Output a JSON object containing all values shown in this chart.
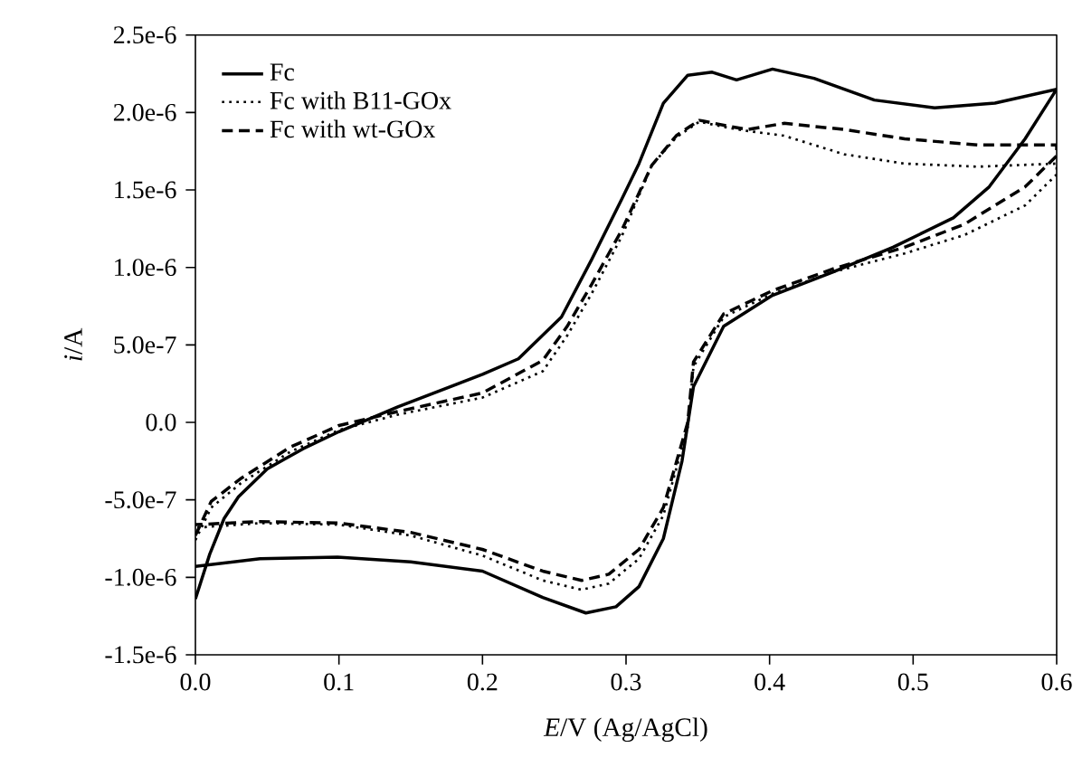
{
  "chart_data": {
    "type": "line",
    "xlabel": "*E*/V (Ag/AgCl)",
    "ylabel": "*i*/A",
    "xlim": [
      0,
      0.6
    ],
    "ylim": [
      -1.5e-06,
      2.5e-06
    ],
    "xticks": [
      {
        "value": 0,
        "label": "0.0"
      },
      0.1,
      0.2,
      0.3,
      0.4,
      0.5,
      0.6
    ],
    "yticks": [
      {
        "value": -1.5e-06,
        "label": "-1.5e-6"
      },
      {
        "value": -1e-06,
        "label": "-1.0e-6"
      },
      {
        "value": -5e-07,
        "label": "-5.0e-7"
      },
      {
        "value": 0,
        "label": "0.0"
      },
      {
        "value": 5e-07,
        "label": "5.0e-7"
      },
      {
        "value": 1e-06,
        "label": "1.0e-6"
      },
      {
        "value": 1.5e-06,
        "label": "1.5e-6"
      },
      {
        "value": 2e-06,
        "label": "2.0e-6"
      },
      {
        "value": 2.5e-06,
        "label": "2.5e-6"
      }
    ],
    "legend": "top left",
    "marker": "none",
    "series": [
      {
        "name": "Fc",
        "color": "#000000",
        "line_style": "solid",
        "x": [
          0,
          0.01,
          0.02,
          0.03,
          0.05,
          0.075,
          0.1,
          0.141,
          0.2,
          0.225,
          0.255,
          0.276,
          0.297,
          0.309,
          0.326,
          0.343,
          0.36,
          0.377,
          0.402,
          0.431,
          0.473,
          0.515,
          0.557,
          0.6,
          0.578,
          0.553,
          0.528,
          0.486,
          0.444,
          0.402,
          0.368,
          0.347,
          0.339,
          0.326,
          0.309,
          0.293,
          0.272,
          0.242,
          0.2,
          0.15,
          0.099,
          0.045,
          0
        ],
        "values": [
          -1.14e-06,
          -8.5e-07,
          -6.2e-07,
          -4.8e-07,
          -3e-07,
          -1.7e-07,
          -6e-08,
          1e-07,
          3.1e-07,
          4.1e-07,
          6.8e-07,
          1.05e-06,
          1.44e-06,
          1.67e-06,
          2.06e-06,
          2.24e-06,
          2.26e-06,
          2.21e-06,
          2.28e-06,
          2.22e-06,
          2.08e-06,
          2.03e-06,
          2.06e-06,
          2.15e-06,
          1.83e-06,
          1.52e-06,
          1.32e-06,
          1.13e-06,
          9.7e-07,
          8.2e-07,
          6.2e-07,
          2.3e-07,
          -2.5e-07,
          -7.5e-07,
          -1.06e-06,
          -1.19e-06,
          -1.23e-06,
          -1.13e-06,
          -9.6e-07,
          -9e-07,
          -8.7e-07,
          -8.8e-07,
          -9.3e-07
        ]
      },
      {
        "name": "Fc with B11-GOx",
        "color": "#000000",
        "line_style": "dotted",
        "x": [
          0,
          0.011,
          0.032,
          0.066,
          0.1,
          0.141,
          0.2,
          0.242,
          0.259,
          0.276,
          0.297,
          0.318,
          0.335,
          0.351,
          0.372,
          0.385,
          0.41,
          0.452,
          0.494,
          0.545,
          0.6,
          0.6,
          0.578,
          0.536,
          0.494,
          0.444,
          0.402,
          0.368,
          0.347,
          0.343,
          0.326,
          0.309,
          0.288,
          0.269,
          0.242,
          0.2,
          0.15,
          0.1,
          0.045,
          0
        ],
        "values": [
          -7.6e-07,
          -5.5e-07,
          -3.9e-07,
          -1.9e-07,
          -5e-08,
          5e-08,
          1.6e-07,
          3.3e-07,
          5.6e-07,
          8.3e-07,
          1.2e-06,
          1.66e-06,
          1.84e-06,
          1.94e-06,
          1.9e-06,
          1.88e-06,
          1.85e-06,
          1.73e-06,
          1.67e-06,
          1.65e-06,
          1.67e-06,
          1.6e-06,
          1.4e-06,
          1.21e-06,
          1.09e-06,
          9.7e-07,
          8.3e-07,
          6.8e-07,
          3.6e-07,
          -3e-08,
          -6e-07,
          -8.8e-07,
          -1.04e-06,
          -1.08e-06,
          -1.02e-06,
          -8.6e-07,
          -7.3e-07,
          -6.6e-07,
          -6.5e-07,
          -6.8e-07
        ]
      },
      {
        "name": "Fc with wt-GOx",
        "color": "#000000",
        "line_style": "dashed",
        "x": [
          0,
          0.011,
          0.032,
          0.066,
          0.1,
          0.141,
          0.2,
          0.242,
          0.259,
          0.276,
          0.297,
          0.318,
          0.335,
          0.351,
          0.372,
          0.385,
          0.41,
          0.452,
          0.494,
          0.545,
          0.6,
          0.6,
          0.578,
          0.536,
          0.494,
          0.444,
          0.402,
          0.368,
          0.347,
          0.343,
          0.326,
          0.309,
          0.288,
          0.269,
          0.242,
          0.2,
          0.15,
          0.1,
          0.045,
          0
        ],
        "values": [
          -7.3e-07,
          -5.1e-07,
          -3.6e-07,
          -1.6e-07,
          -2e-08,
          7e-08,
          1.9e-07,
          4e-07,
          6.2e-07,
          8.9e-07,
          1.24e-06,
          1.66e-06,
          1.85e-06,
          1.95e-06,
          1.91e-06,
          1.89e-06,
          1.93e-06,
          1.89e-06,
          1.83e-06,
          1.79e-06,
          1.79e-06,
          1.72e-06,
          1.52e-06,
          1.28e-06,
          1.13e-06,
          9.9e-07,
          8.5e-07,
          7e-07,
          3.9e-07,
          0.0,
          -5.5e-07,
          -8.2e-07,
          -9.8e-07,
          -1.02e-06,
          -9.6e-07,
          -8.2e-07,
          -7.1e-07,
          -6.5e-07,
          -6.4e-07,
          -6.6e-07
        ]
      }
    ]
  }
}
